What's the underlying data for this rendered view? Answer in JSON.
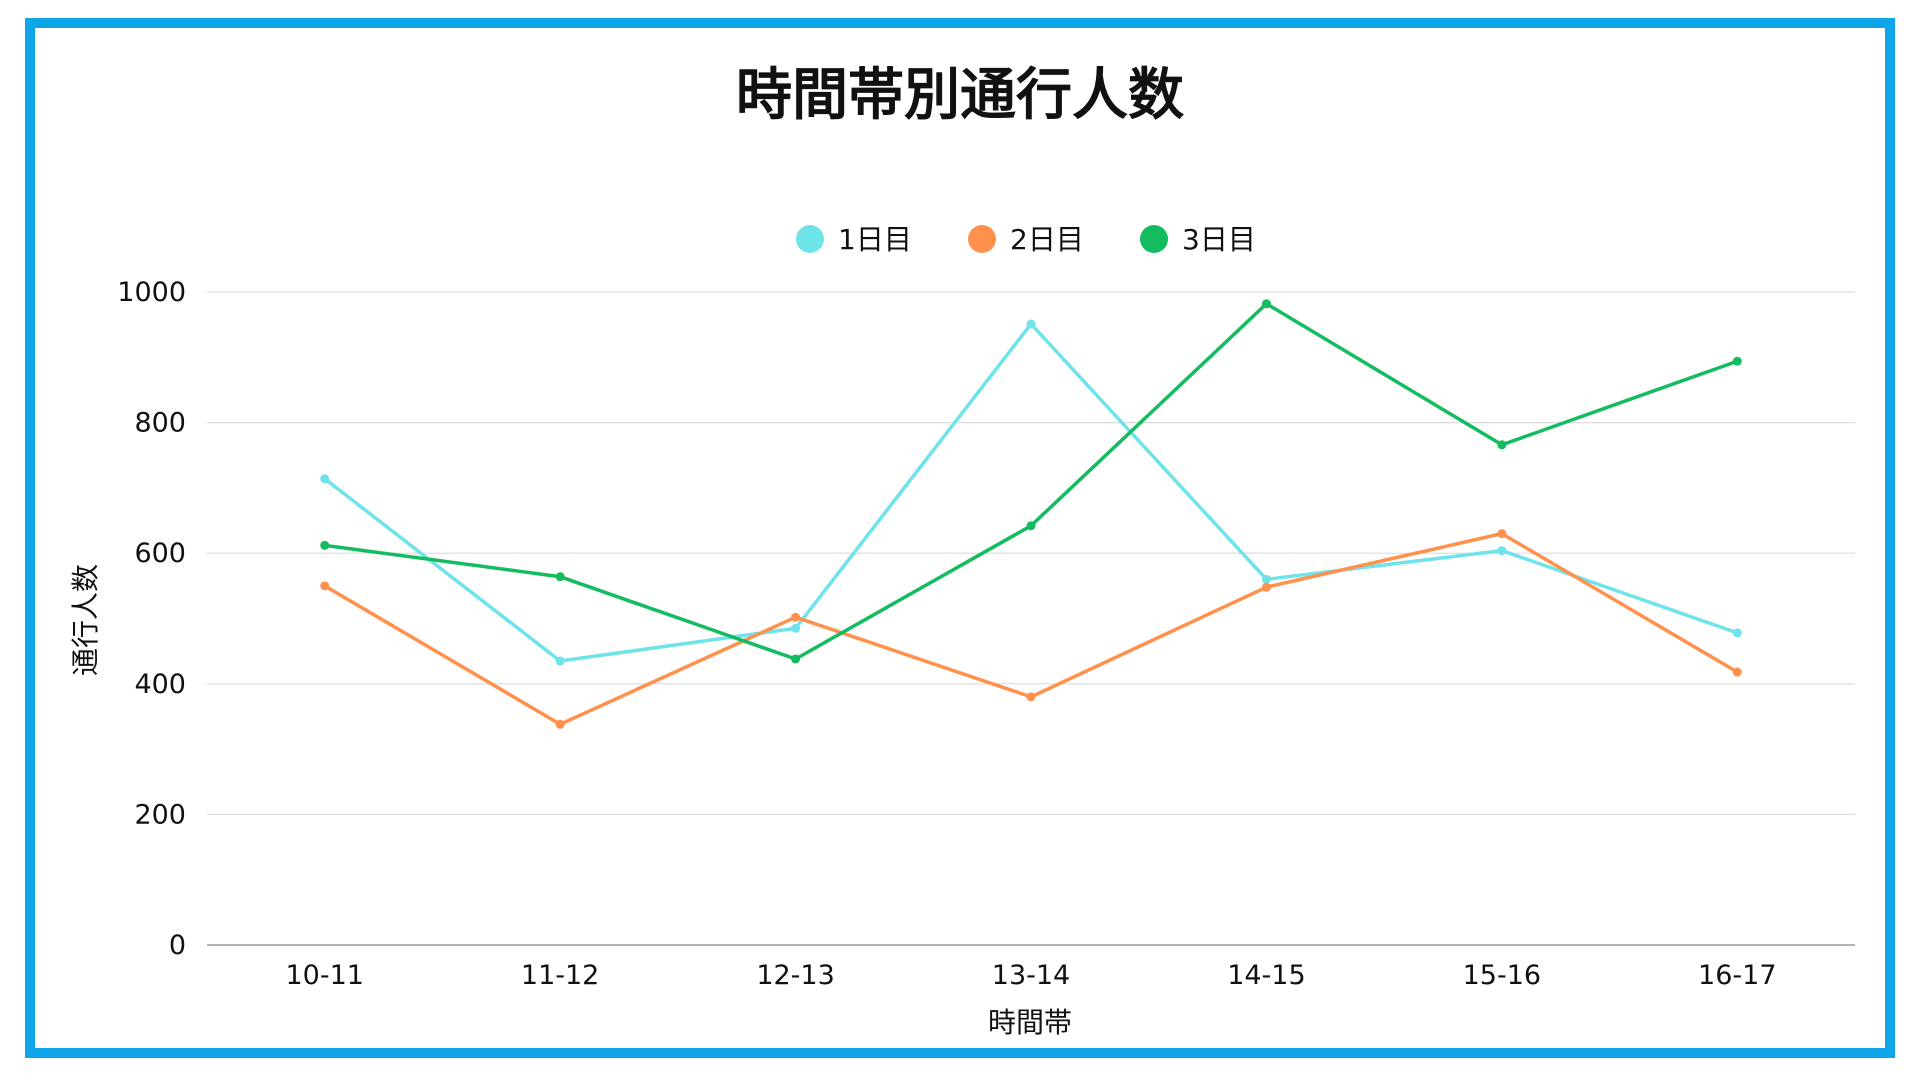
{
  "chart_data": {
    "type": "line",
    "title": "時間帯別通行人数",
    "xlabel": "時間帯",
    "ylabel": "通行人数",
    "categories": [
      "10-11",
      "11-12",
      "12-13",
      "13-14",
      "14-15",
      "15-16",
      "16-17"
    ],
    "y_ticks": [
      "0",
      "200",
      "400",
      "600",
      "800",
      "1000"
    ],
    "ylim": [
      0,
      1000
    ],
    "grid": true,
    "legend_position": "top-center",
    "series": [
      {
        "name": "1日目",
        "color": "#6ee3ea",
        "values": [
          714,
          435,
          485,
          951,
          560,
          604,
          478
        ]
      },
      {
        "name": "2日目",
        "color": "#ff914d",
        "values": [
          550,
          338,
          502,
          380,
          548,
          630,
          418
        ]
      },
      {
        "name": "3日目",
        "color": "#13bc5f",
        "values": [
          612,
          564,
          438,
          642,
          982,
          766,
          894
        ]
      }
    ]
  },
  "frame": {
    "border_color": "#0ea5e9"
  }
}
